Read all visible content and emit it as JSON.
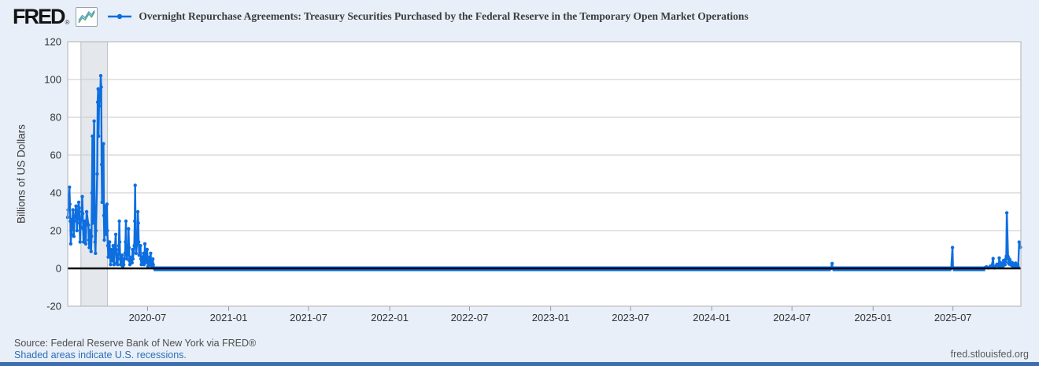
{
  "header": {
    "logo": "FRED",
    "logo_registered": "®",
    "series_title": "Overnight Repurchase Agreements: Treasury Securities Purchased by the Federal Reserve in the Temporary Open Market Operations"
  },
  "footer": {
    "source": "Source: Federal Reserve Bank of New York via FRED®",
    "recession_note": "Shaded areas indicate U.S. recessions.",
    "site": "fred.stlouisfed.org"
  },
  "colors": {
    "line": "#0d6ee0",
    "page_bg": "#e8eff8",
    "plot_bg": "#ffffff",
    "gridline": "#c9c9c9",
    "plot_border": "#b2b2b2",
    "recession_fill": "#e4e8ec",
    "recession_edge": "#b9bfc6",
    "zero_line": "#000000",
    "tick_text": "#333333",
    "bottom_bar": "#3d6eb2",
    "link_blue": "#2e6eb5"
  },
  "chart_data": {
    "type": "line",
    "title": "Overnight Repurchase Agreements: Treasury Securities Purchased by the Federal Reserve in the Temporary Open Market Operations",
    "xlabel": "",
    "ylabel": "Billions of US Dollars",
    "y_axis": {
      "min": -20,
      "max": 120,
      "step": 20
    },
    "x_range": [
      "2020-01-02",
      "2025-12-02"
    ],
    "x_ticks": [
      "2020-07",
      "2021-01",
      "2021-07",
      "2022-01",
      "2022-07",
      "2023-01",
      "2023-07",
      "2024-01",
      "2024-07",
      "2025-01",
      "2025-07"
    ],
    "recession_bands": [
      [
        "2020-02-01",
        "2020-04-01"
      ]
    ],
    "grid": "horizontal-only",
    "legend_position": "top",
    "series": [
      {
        "name": "Overnight Repurchase Agreements: Treasury Securities Purchased by the Federal Reserve in the Temporary Open Market Operations",
        "color": "#0d6ee0",
        "marker": "circle",
        "points": [
          [
            "2020-01-02",
            27
          ],
          [
            "2020-01-03",
            31
          ],
          [
            "2020-01-06",
            43
          ],
          [
            "2020-01-07",
            34
          ],
          [
            "2020-01-08",
            25
          ],
          [
            "2020-01-09",
            13
          ],
          [
            "2020-01-10",
            18
          ],
          [
            "2020-01-13",
            26
          ],
          [
            "2020-01-14",
            31
          ],
          [
            "2020-01-15",
            22
          ],
          [
            "2020-01-16",
            17
          ],
          [
            "2020-01-17",
            25
          ],
          [
            "2020-01-21",
            33
          ],
          [
            "2020-01-22",
            28
          ],
          [
            "2020-01-23",
            20
          ],
          [
            "2020-01-24",
            26
          ],
          [
            "2020-01-27",
            35
          ],
          [
            "2020-01-28",
            32
          ],
          [
            "2020-01-29",
            24
          ],
          [
            "2020-01-30",
            14
          ],
          [
            "2020-01-31",
            22
          ],
          [
            "2020-02-03",
            30
          ],
          [
            "2020-02-04",
            38
          ],
          [
            "2020-02-05",
            29
          ],
          [
            "2020-02-06",
            21
          ],
          [
            "2020-02-07",
            14
          ],
          [
            "2020-02-10",
            25
          ],
          [
            "2020-02-11",
            19
          ],
          [
            "2020-02-12",
            13
          ],
          [
            "2020-02-13",
            24
          ],
          [
            "2020-02-14",
            30
          ],
          [
            "2020-02-18",
            23
          ],
          [
            "2020-02-19",
            15
          ],
          [
            "2020-02-20",
            11
          ],
          [
            "2020-02-21",
            20
          ],
          [
            "2020-02-24",
            9
          ],
          [
            "2020-02-25",
            17
          ],
          [
            "2020-02-26",
            40
          ],
          [
            "2020-02-27",
            70
          ],
          [
            "2020-02-28",
            24
          ],
          [
            "2020-03-02",
            78
          ],
          [
            "2020-03-03",
            30
          ],
          [
            "2020-03-04",
            14
          ],
          [
            "2020-03-05",
            8
          ],
          [
            "2020-03-06",
            20
          ],
          [
            "2020-03-09",
            50
          ],
          [
            "2020-03-10",
            88
          ],
          [
            "2020-03-11",
            95
          ],
          [
            "2020-03-12",
            70
          ],
          [
            "2020-03-13",
            86
          ],
          [
            "2020-03-16",
            94
          ],
          [
            "2020-03-17",
            102
          ],
          [
            "2020-03-18",
            96
          ],
          [
            "2020-03-19",
            55
          ],
          [
            "2020-03-20",
            35
          ],
          [
            "2020-03-23",
            66
          ],
          [
            "2020-03-24",
            28
          ],
          [
            "2020-03-25",
            15
          ],
          [
            "2020-03-26",
            25
          ],
          [
            "2020-03-27",
            33
          ],
          [
            "2020-03-30",
            18
          ],
          [
            "2020-03-31",
            34
          ],
          [
            "2020-04-01",
            20
          ],
          [
            "2020-04-02",
            12
          ],
          [
            "2020-04-03",
            6
          ],
          [
            "2020-04-06",
            14
          ],
          [
            "2020-04-07",
            8
          ],
          [
            "2020-04-08",
            2
          ],
          [
            "2020-04-09",
            10
          ],
          [
            "2020-04-13",
            4
          ],
          [
            "2020-04-14",
            12
          ],
          [
            "2020-04-15",
            6
          ],
          [
            "2020-04-16",
            2
          ],
          [
            "2020-04-17",
            8
          ],
          [
            "2020-04-20",
            18
          ],
          [
            "2020-04-21",
            10
          ],
          [
            "2020-04-22",
            3
          ],
          [
            "2020-04-23",
            7
          ],
          [
            "2020-04-24",
            2
          ],
          [
            "2020-04-27",
            12
          ],
          [
            "2020-04-28",
            25
          ],
          [
            "2020-04-29",
            14
          ],
          [
            "2020-04-30",
            5
          ],
          [
            "2020-05-01",
            2
          ],
          [
            "2020-05-04",
            7
          ],
          [
            "2020-05-05",
            3
          ],
          [
            "2020-05-06",
            1
          ],
          [
            "2020-05-07",
            5
          ],
          [
            "2020-05-08",
            2
          ],
          [
            "2020-05-11",
            8
          ],
          [
            "2020-05-12",
            14
          ],
          [
            "2020-05-13",
            25
          ],
          [
            "2020-05-14",
            12
          ],
          [
            "2020-05-15",
            5
          ],
          [
            "2020-05-18",
            9
          ],
          [
            "2020-05-19",
            21
          ],
          [
            "2020-05-20",
            11
          ],
          [
            "2020-05-21",
            4
          ],
          [
            "2020-05-22",
            2
          ],
          [
            "2020-05-26",
            6
          ],
          [
            "2020-05-27",
            3
          ],
          [
            "2020-05-28",
            10
          ],
          [
            "2020-05-29",
            5
          ],
          [
            "2020-06-01",
            12
          ],
          [
            "2020-06-02",
            25
          ],
          [
            "2020-06-03",
            44
          ],
          [
            "2020-06-04",
            18
          ],
          [
            "2020-06-05",
            8
          ],
          [
            "2020-06-08",
            15
          ],
          [
            "2020-06-09",
            30
          ],
          [
            "2020-06-10",
            24
          ],
          [
            "2020-06-11",
            14
          ],
          [
            "2020-06-12",
            7
          ],
          [
            "2020-06-15",
            12
          ],
          [
            "2020-06-16",
            5
          ],
          [
            "2020-06-17",
            2
          ],
          [
            "2020-06-18",
            6
          ],
          [
            "2020-06-19",
            3
          ],
          [
            "2020-06-22",
            8
          ],
          [
            "2020-06-23",
            2
          ],
          [
            "2020-06-24",
            5
          ],
          [
            "2020-06-25",
            13
          ],
          [
            "2020-06-26",
            3
          ],
          [
            "2020-06-29",
            7
          ],
          [
            "2020-06-30",
            10
          ],
          [
            "2020-07-01",
            4
          ],
          [
            "2020-07-02",
            1
          ],
          [
            "2020-07-06",
            6
          ],
          [
            "2020-07-07",
            2
          ],
          [
            "2020-07-08",
            8
          ],
          [
            "2020-07-09",
            3
          ],
          [
            "2020-07-10",
            1
          ],
          [
            "2020-07-13",
            5
          ],
          [
            "2020-07-14",
            2
          ],
          [
            "2020-07-15",
            0.4
          ],
          [
            "2020-07-16",
            0.1
          ],
          [
            "2020-07-17",
            0
          ],
          [
            "2020-08-03",
            0
          ],
          [
            "2020-09-01",
            0
          ],
          [
            "2020-10-01",
            0
          ],
          [
            "2020-11-02",
            0
          ],
          [
            "2020-12-01",
            0
          ],
          [
            "2021-01-04",
            0
          ],
          [
            "2021-02-01",
            0
          ],
          [
            "2021-03-01",
            0
          ],
          [
            "2021-04-01",
            0
          ],
          [
            "2021-05-03",
            0
          ],
          [
            "2021-06-01",
            0
          ],
          [
            "2021-07-01",
            0
          ],
          [
            "2021-08-02",
            0
          ],
          [
            "2021-09-01",
            0
          ],
          [
            "2021-10-01",
            0
          ],
          [
            "2021-11-01",
            0
          ],
          [
            "2021-12-01",
            0
          ],
          [
            "2022-01-03",
            0
          ],
          [
            "2022-02-01",
            0
          ],
          [
            "2022-03-01",
            0
          ],
          [
            "2022-04-01",
            0
          ],
          [
            "2022-05-02",
            0
          ],
          [
            "2022-06-01",
            0
          ],
          [
            "2022-07-01",
            0
          ],
          [
            "2022-08-01",
            0
          ],
          [
            "2022-09-01",
            0
          ],
          [
            "2022-10-03",
            0
          ],
          [
            "2022-11-01",
            0
          ],
          [
            "2022-12-01",
            0
          ],
          [
            "2023-01-03",
            0
          ],
          [
            "2023-02-01",
            0
          ],
          [
            "2023-03-01",
            0
          ],
          [
            "2023-04-03",
            0
          ],
          [
            "2023-05-01",
            0
          ],
          [
            "2023-06-01",
            0
          ],
          [
            "2023-07-03",
            0
          ],
          [
            "2023-08-01",
            0
          ],
          [
            "2023-09-01",
            0
          ],
          [
            "2023-10-02",
            0
          ],
          [
            "2023-11-01",
            0
          ],
          [
            "2023-12-01",
            0
          ],
          [
            "2024-01-02",
            0
          ],
          [
            "2024-02-01",
            0
          ],
          [
            "2024-03-01",
            0
          ],
          [
            "2024-04-01",
            0
          ],
          [
            "2024-05-01",
            0
          ],
          [
            "2024-06-03",
            0
          ],
          [
            "2024-07-01",
            0
          ],
          [
            "2024-08-01",
            0
          ],
          [
            "2024-09-03",
            0
          ],
          [
            "2024-09-27",
            0
          ],
          [
            "2024-09-30",
            2.6
          ],
          [
            "2024-10-01",
            0
          ],
          [
            "2024-11-01",
            0
          ],
          [
            "2024-12-02",
            0
          ],
          [
            "2025-01-02",
            0
          ],
          [
            "2025-02-03",
            0
          ],
          [
            "2025-03-03",
            0
          ],
          [
            "2025-04-01",
            0
          ],
          [
            "2025-05-01",
            0
          ],
          [
            "2025-06-02",
            0
          ],
          [
            "2025-06-27",
            0
          ],
          [
            "2025-06-30",
            11.1
          ],
          [
            "2025-07-01",
            0.3
          ],
          [
            "2025-07-15",
            0
          ],
          [
            "2025-08-01",
            0
          ],
          [
            "2025-08-15",
            0
          ],
          [
            "2025-09-02",
            0
          ],
          [
            "2025-09-12",
            0.4
          ],
          [
            "2025-09-15",
            0.8
          ],
          [
            "2025-09-19",
            0.3
          ],
          [
            "2025-09-24",
            1.2
          ],
          [
            "2025-09-26",
            0.5
          ],
          [
            "2025-09-30",
            5.2
          ],
          [
            "2025-10-01",
            1
          ],
          [
            "2025-10-03",
            0.3
          ],
          [
            "2025-10-07",
            1.4
          ],
          [
            "2025-10-09",
            2.2
          ],
          [
            "2025-10-13",
            1
          ],
          [
            "2025-10-14",
            5.5
          ],
          [
            "2025-10-15",
            2
          ],
          [
            "2025-10-16",
            3.2
          ],
          [
            "2025-10-17",
            1.2
          ],
          [
            "2025-10-20",
            2.2
          ],
          [
            "2025-10-21",
            1
          ],
          [
            "2025-10-22",
            2.8
          ],
          [
            "2025-10-23",
            1.4
          ],
          [
            "2025-10-24",
            4.2
          ],
          [
            "2025-10-27",
            2
          ],
          [
            "2025-10-28",
            3.6
          ],
          [
            "2025-10-29",
            5
          ],
          [
            "2025-10-30",
            6.4
          ],
          [
            "2025-10-31",
            29.4
          ],
          [
            "2025-11-03",
            6.3
          ],
          [
            "2025-11-04",
            2.8
          ],
          [
            "2025-11-05",
            5.1
          ],
          [
            "2025-11-06",
            2.2
          ],
          [
            "2025-11-07",
            4.6
          ],
          [
            "2025-11-10",
            1.8
          ],
          [
            "2025-11-12",
            3.1
          ],
          [
            "2025-11-13",
            1.2
          ],
          [
            "2025-11-14",
            2.6
          ],
          [
            "2025-11-17",
            0.8
          ],
          [
            "2025-11-18",
            1.9
          ],
          [
            "2025-11-19",
            0.9
          ],
          [
            "2025-11-20",
            2.8
          ],
          [
            "2025-11-21",
            1.6
          ],
          [
            "2025-11-24",
            1
          ],
          [
            "2025-11-25",
            1.8
          ],
          [
            "2025-11-26",
            0.7
          ],
          [
            "2025-11-28",
            13.9
          ],
          [
            "2025-12-01",
            11.2
          ]
        ]
      }
    ]
  }
}
